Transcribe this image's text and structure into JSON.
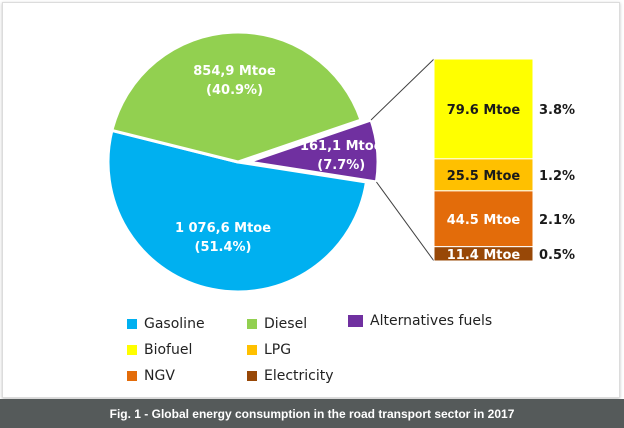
{
  "chart_data": {
    "type": "pie",
    "total_slices": [
      {
        "name": "Gasoline",
        "value": 1076.6,
        "value_label": "1 076,6 Mtoe",
        "pct_label": "(51.4%)",
        "color": "#00b0f0"
      },
      {
        "name": "Diesel",
        "value": 854.9,
        "value_label": "854,9 Mtoe",
        "pct_label": "(40.9%)",
        "color": "#92d050"
      },
      {
        "name": "Alternatives fuels",
        "value": 161.1,
        "value_label": "161,1 Mtoe",
        "pct_label": "(7.7%)",
        "color": "#7030a0"
      }
    ],
    "breakdown": [
      {
        "name": "Biofuel",
        "value": 79.6,
        "value_label": "79.6 Mtoe",
        "pct_label": "3.8%",
        "color": "#ffff00"
      },
      {
        "name": "LPG",
        "value": 25.5,
        "value_label": "25.5 Mtoe",
        "pct_label": "1.2%",
        "color": "#ffc000"
      },
      {
        "name": "NGV",
        "value": 44.5,
        "value_label": "44.5 Mtoe",
        "pct_label": "2.1%",
        "color": "#e36c0a"
      },
      {
        "name": "Electricity",
        "value": 11.4,
        "value_label": "11.4 Mtoe",
        "pct_label": "0.5%",
        "color": "#984807"
      }
    ],
    "legend": [
      {
        "label": "Gasoline",
        "color": "#00b0f0"
      },
      {
        "label": "Diesel",
        "color": "#92d050"
      },
      {
        "label": "Alternatives fuels",
        "color": "#7030a0"
      },
      {
        "label": "Biofuel",
        "color": "#ffff00"
      },
      {
        "label": "LPG",
        "color": "#ffc000"
      },
      {
        "label": "NGV",
        "color": "#e36c0a"
      },
      {
        "label": "Electricity",
        "color": "#984807"
      }
    ]
  },
  "caption": "Fig. 1 - Global energy consumption in the road transport sector in 2017"
}
